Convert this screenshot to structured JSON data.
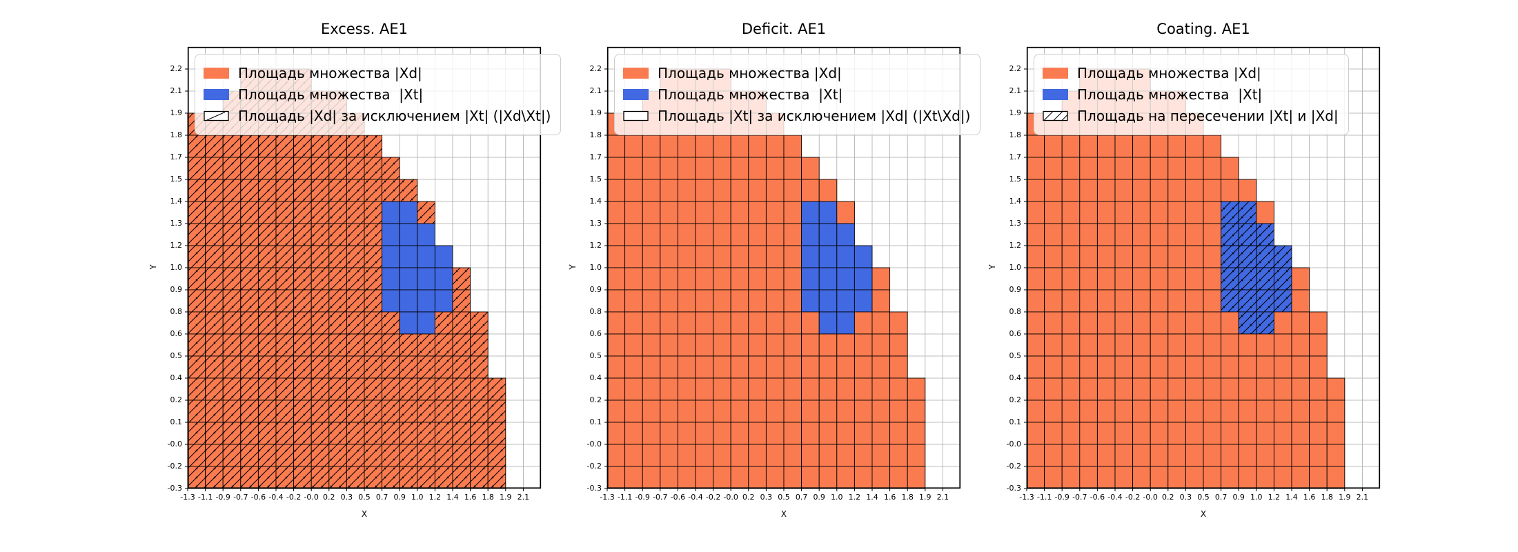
{
  "figure": {
    "background": "#ffffff"
  },
  "colors": {
    "xd": "#fb7b50",
    "xt": "#4169e1",
    "grid": "#a9a9a9",
    "cell_border": "#000000",
    "axes_border": "#000000",
    "legend_bg": "rgba(255,255,255,0.8)",
    "legend_border": "#cccccc",
    "hatch": "#000000"
  },
  "chart_data": {
    "type": "heatmap",
    "xlabel": "X",
    "ylabel": "Y",
    "x_tick_labels": [
      "-1.3",
      "-1.1",
      "-0.9",
      "-0.7",
      "-0.6",
      "-0.4",
      "-0.2",
      "-0.0",
      "0.2",
      "0.3",
      "0.5",
      "0.7",
      "0.9",
      "1.0",
      "1.2",
      "1.4",
      "1.6",
      "1.8",
      "1.9",
      "2.1"
    ],
    "y_tick_labels": [
      "2.2",
      "2.1",
      "1.9",
      "1.8",
      "1.7",
      "1.5",
      "1.4",
      "1.3",
      "1.2",
      "1.0",
      "0.9",
      "0.8",
      "0.6",
      "0.5",
      "0.4",
      "0.2",
      "0.1",
      "-0.0",
      "-0.2",
      "-0.3"
    ],
    "grid": {
      "cols": 20,
      "rows": 20
    },
    "legend_position": "upper left",
    "regions": {
      "xd_rows": [
        [],
        [
          [
            3,
            6
          ]
        ],
        [
          [
            2,
            8
          ]
        ],
        [
          [
            0,
            9
          ]
        ],
        [
          [
            0,
            10
          ]
        ],
        [
          [
            0,
            11
          ]
        ],
        [
          [
            0,
            12
          ]
        ],
        [
          [
            0,
            13
          ]
        ],
        [
          [
            0,
            13
          ]
        ],
        [
          [
            0,
            14
          ]
        ],
        [
          [
            0,
            15
          ]
        ],
        [
          [
            0,
            15
          ]
        ],
        [
          [
            0,
            16
          ]
        ],
        [
          [
            0,
            16
          ]
        ],
        [
          [
            0,
            16
          ]
        ],
        [
          [
            0,
            17
          ]
        ],
        [
          [
            0,
            17
          ]
        ],
        [
          [
            0,
            17
          ]
        ],
        [
          [
            0,
            17
          ]
        ],
        [
          [
            0,
            17
          ]
        ]
      ],
      "xt_rows": [
        [],
        [],
        [],
        [],
        [],
        [],
        [],
        [
          [
            11,
            12
          ]
        ],
        [
          [
            11,
            13
          ]
        ],
        [
          [
            11,
            14
          ]
        ],
        [
          [
            11,
            14
          ]
        ],
        [
          [
            11,
            14
          ]
        ],
        [
          [
            12,
            13
          ]
        ],
        [],
        [],
        [],
        [],
        [],
        [],
        []
      ]
    },
    "panels": [
      {
        "id": "excess",
        "title": "Excess. AE1",
        "hatched_region": "xd_without_xt",
        "legend_swatch3_hatch": "single",
        "legend_labels": [
          "Площадь множества |Xd|",
          "Площадь множества  |Xt|",
          "Площадь |Xd| за исключением |Xt| (|Xd\\Xt|)"
        ]
      },
      {
        "id": "deficit",
        "title": "Deficit. AE1",
        "hatched_region": "none",
        "legend_swatch3_hatch": "none",
        "legend_labels": [
          "Площадь множества |Xd|",
          "Площадь множества  |Xt|",
          "Площадь |Xt| за исключением |Xd| (|Xt\\Xd|)"
        ]
      },
      {
        "id": "coating",
        "title": "Coating. AE1",
        "hatched_region": "xt_intersection_xd",
        "legend_swatch3_hatch": "double",
        "legend_labels": [
          "Площадь множества |Xd|",
          "Площадь множества  |Xt|",
          "Площадь на пересечении |Xt| и |Xd|"
        ]
      }
    ]
  }
}
